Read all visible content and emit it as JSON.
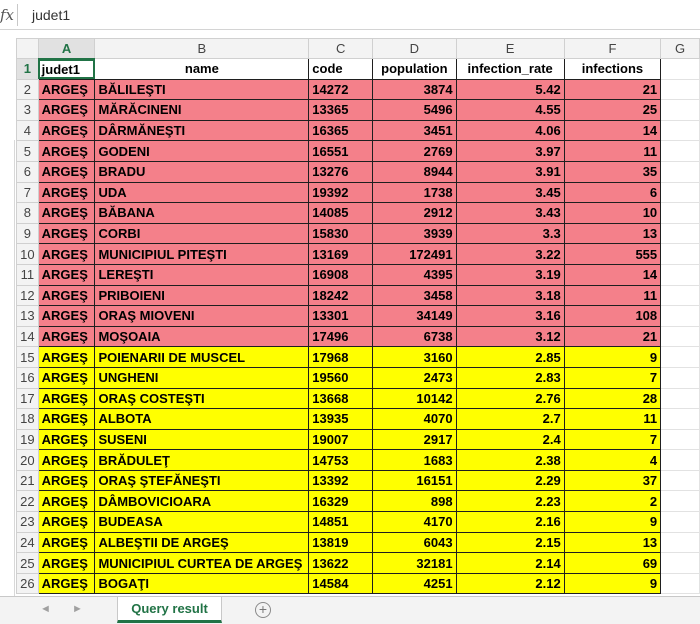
{
  "formula_bar": {
    "fx_label": "fx",
    "value": "judet1"
  },
  "columns": [
    "A",
    "B",
    "C",
    "D",
    "E",
    "F",
    "G"
  ],
  "header_row": {
    "row": "1",
    "cells": [
      "judet1",
      "name",
      "code",
      "population",
      "infection_rate",
      "infections"
    ]
  },
  "rows": [
    {
      "row": "2",
      "band": "red",
      "cells": [
        "ARGEŞ",
        "BĂLILEŞTI",
        "14272",
        "3874",
        "5.42",
        "21"
      ]
    },
    {
      "row": "3",
      "band": "red",
      "cells": [
        "ARGEŞ",
        "MĂRĂCINENI",
        "13365",
        "5496",
        "4.55",
        "25"
      ]
    },
    {
      "row": "4",
      "band": "red",
      "cells": [
        "ARGEŞ",
        "DÂRMĂNEŞTI",
        "16365",
        "3451",
        "4.06",
        "14"
      ]
    },
    {
      "row": "5",
      "band": "red",
      "cells": [
        "ARGEŞ",
        "GODENI",
        "16551",
        "2769",
        "3.97",
        "11"
      ]
    },
    {
      "row": "6",
      "band": "red",
      "cells": [
        "ARGEŞ",
        "BRADU",
        "13276",
        "8944",
        "3.91",
        "35"
      ]
    },
    {
      "row": "7",
      "band": "red",
      "cells": [
        "ARGEŞ",
        "UDA",
        "19392",
        "1738",
        "3.45",
        "6"
      ]
    },
    {
      "row": "8",
      "band": "red",
      "cells": [
        "ARGEŞ",
        "BĂBANA",
        "14085",
        "2912",
        "3.43",
        "10"
      ]
    },
    {
      "row": "9",
      "band": "red",
      "cells": [
        "ARGEŞ",
        "CORBI",
        "15830",
        "3939",
        "3.3",
        "13"
      ]
    },
    {
      "row": "10",
      "band": "red",
      "cells": [
        "ARGEŞ",
        "MUNICIPIUL PITEŞTI",
        "13169",
        "172491",
        "3.22",
        "555"
      ]
    },
    {
      "row": "11",
      "band": "red",
      "cells": [
        "ARGEŞ",
        "LEREŞTI",
        "16908",
        "4395",
        "3.19",
        "14"
      ]
    },
    {
      "row": "12",
      "band": "red",
      "cells": [
        "ARGEŞ",
        "PRIBOIENI",
        "18242",
        "3458",
        "3.18",
        "11"
      ]
    },
    {
      "row": "13",
      "band": "red",
      "cells": [
        "ARGEŞ",
        "ORAŞ MIOVENI",
        "13301",
        "34149",
        "3.16",
        "108"
      ]
    },
    {
      "row": "14",
      "band": "red",
      "cells": [
        "ARGEŞ",
        "MOŞOAIA",
        "17496",
        "6738",
        "3.12",
        "21"
      ]
    },
    {
      "row": "15",
      "band": "yellow",
      "cells": [
        "ARGEŞ",
        "POIENARII DE MUSCEL",
        "17968",
        "3160",
        "2.85",
        "9"
      ]
    },
    {
      "row": "16",
      "band": "yellow",
      "cells": [
        "ARGEŞ",
        "UNGHENI",
        "19560",
        "2473",
        "2.83",
        "7"
      ]
    },
    {
      "row": "17",
      "band": "yellow",
      "cells": [
        "ARGEŞ",
        "ORAŞ COSTEŞTI",
        "13668",
        "10142",
        "2.76",
        "28"
      ]
    },
    {
      "row": "18",
      "band": "yellow",
      "cells": [
        "ARGEŞ",
        "ALBOTA",
        "13935",
        "4070",
        "2.7",
        "11"
      ]
    },
    {
      "row": "19",
      "band": "yellow",
      "cells": [
        "ARGEŞ",
        "SUSENI",
        "19007",
        "2917",
        "2.4",
        "7"
      ]
    },
    {
      "row": "20",
      "band": "yellow",
      "cells": [
        "ARGEŞ",
        "BRĂDULEŢ",
        "14753",
        "1683",
        "2.38",
        "4"
      ]
    },
    {
      "row": "21",
      "band": "yellow",
      "cells": [
        "ARGEŞ",
        "ORAŞ ŞTEFĂNEŞTI",
        "13392",
        "16151",
        "2.29",
        "37"
      ]
    },
    {
      "row": "22",
      "band": "yellow",
      "cells": [
        "ARGEŞ",
        "DÂMBOVICIOARA",
        "16329",
        "898",
        "2.23",
        "2"
      ]
    },
    {
      "row": "23",
      "band": "yellow",
      "cells": [
        "ARGEŞ",
        "BUDEASA",
        "14851",
        "4170",
        "2.16",
        "9"
      ]
    },
    {
      "row": "24",
      "band": "yellow",
      "cells": [
        "ARGEŞ",
        "ALBEŞTII DE ARGEŞ",
        "13819",
        "6043",
        "2.15",
        "13"
      ]
    },
    {
      "row": "25",
      "band": "yellow",
      "cells": [
        "ARGEŞ",
        "MUNICIPIUL CURTEA DE ARGEŞ",
        "13622",
        "32181",
        "2.14",
        "69"
      ]
    },
    {
      "row": "26",
      "band": "yellow",
      "cells": [
        "ARGEŞ",
        "BOGAŢI",
        "14584",
        "4251",
        "2.12",
        "9"
      ]
    }
  ],
  "selection": {
    "cell": "A1",
    "column": "A",
    "row": "1"
  },
  "band_colors": {
    "red": "#f4808a",
    "yellow": "#ffff00"
  },
  "sheet_tabs": [
    {
      "label": "Query result",
      "active": true
    }
  ],
  "icons": {
    "formula": "fx-icon",
    "prev": "prev-sheet-icon",
    "next": "next-sheet-icon",
    "add": "add-sheet-icon"
  },
  "nav": {
    "prev_glyph": "◄",
    "next_glyph": "►",
    "add_glyph": "+"
  }
}
